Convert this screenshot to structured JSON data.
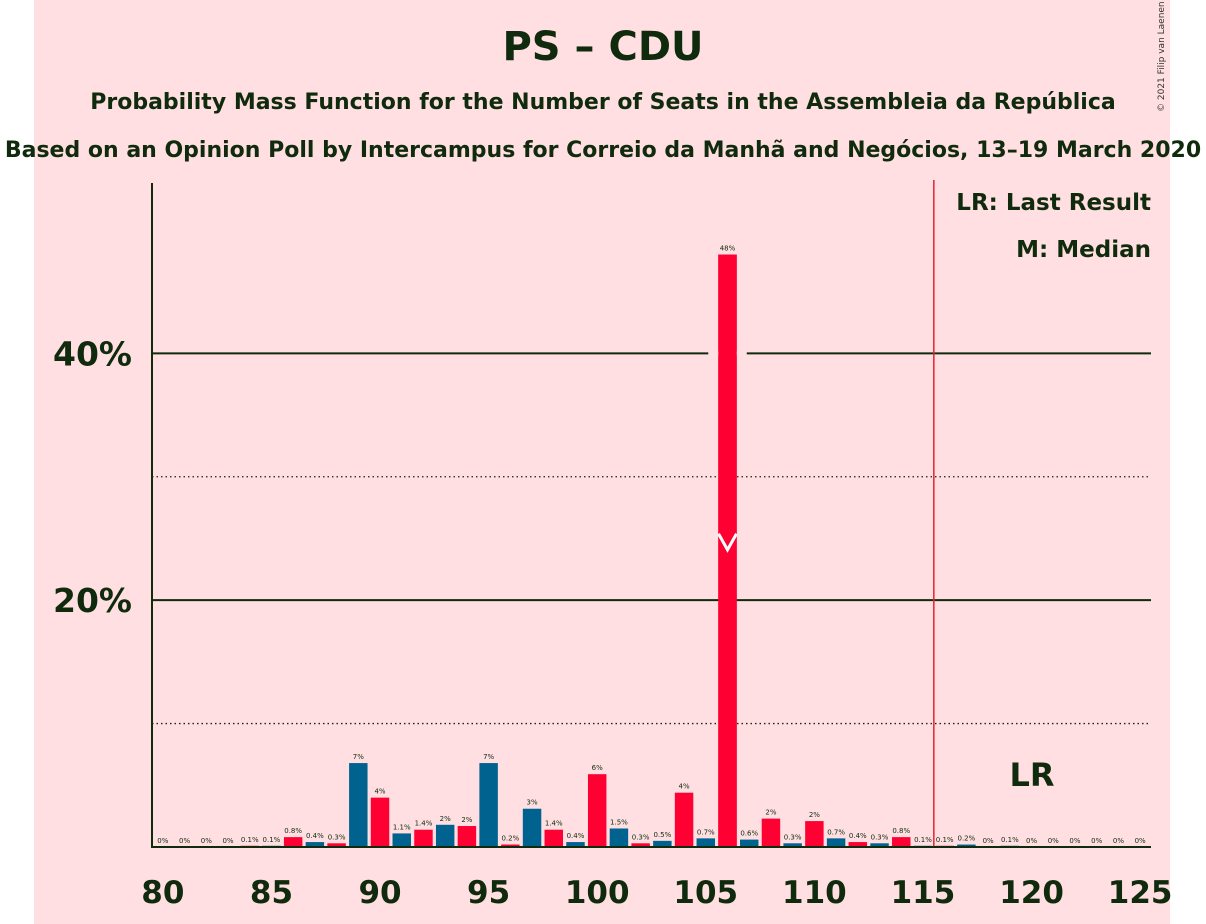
{
  "header": {
    "title": "PS – CDU",
    "subtitle": "Probability Mass Function for the Number of Seats in the Assembleia da República",
    "source": "Based on an Opinion Poll by Intercampus for Correio da Manhã and Negócios, 13–19 March 2020",
    "copyright": "© 2021 Filip van Laenen"
  },
  "legend": {
    "last_result": "LR: Last Result",
    "median": "M: Median",
    "lr_marker": "LR"
  },
  "colors": {
    "background": "#ffdfe1",
    "ps_red": "#ff0033",
    "cdu_blue": "#00628f",
    "last_result_line": "#e8202d",
    "text": "#0f2a0c"
  },
  "chart_data": {
    "type": "bar",
    "x": [
      80,
      81,
      82,
      83,
      84,
      85,
      86,
      87,
      88,
      89,
      90,
      91,
      92,
      93,
      94,
      95,
      96,
      97,
      98,
      99,
      100,
      101,
      102,
      103,
      104,
      105,
      106,
      107,
      108,
      109,
      110,
      111,
      112,
      113,
      114,
      115,
      116,
      117,
      118,
      119,
      120,
      121,
      122,
      123,
      124,
      125
    ],
    "values": [
      0,
      0,
      0,
      0,
      0.1,
      0.1,
      0.8,
      0.4,
      0.3,
      6.8,
      4.0,
      1.1,
      1.4,
      1.8,
      1.7,
      6.8,
      0.2,
      3.1,
      1.4,
      0.4,
      5.9,
      1.5,
      0.3,
      0.5,
      4.4,
      0.7,
      48.0,
      0.6,
      2.3,
      0.3,
      2.1,
      0.7,
      0.4,
      0.3,
      0.8,
      0.1,
      0.1,
      0.2,
      0,
      0.1,
      0,
      0,
      0,
      0,
      0,
      0
    ],
    "labels": [
      "0%",
      "0%",
      "0%",
      "0%",
      "0.1%",
      "0.1%",
      "0.8%",
      "0.4%",
      "0.3%",
      "7%",
      "4%",
      "1.1%",
      "1.4%",
      "2%",
      "2%",
      "7%",
      "0.2%",
      "3%",
      "1.4%",
      "0.4%",
      "6%",
      "1.5%",
      "0.3%",
      "0.5%",
      "4%",
      "0.7%",
      "48%",
      "0.6%",
      "2%",
      "0.3%",
      "2%",
      "0.7%",
      "0.4%",
      "0.3%",
      "0.8%",
      "0.1%",
      "0.1%",
      "0.2%",
      "0%",
      "0.1%",
      "0%",
      "0%",
      "0%",
      "0%",
      "0%",
      "0%"
    ],
    "bar_colors": [
      "red",
      "blue",
      "red",
      "blue",
      "red",
      "blue",
      "red",
      "blue",
      "red",
      "blue",
      "red",
      "blue",
      "red",
      "blue",
      "red",
      "blue",
      "red",
      "blue",
      "red",
      "blue",
      "red",
      "blue",
      "red",
      "blue",
      "red",
      "blue",
      "red",
      "blue",
      "red",
      "blue",
      "red",
      "blue",
      "red",
      "blue",
      "red",
      "blue",
      "red",
      "blue",
      "red",
      "blue",
      "red",
      "blue",
      "red",
      "blue",
      "red",
      "blue"
    ],
    "x_ticks": [
      80,
      85,
      90,
      95,
      100,
      105,
      110,
      115,
      120,
      125
    ],
    "x_tick_labels": [
      "80",
      "85",
      "90",
      "95",
      "100",
      "105",
      "110",
      "115",
      "120",
      "125"
    ],
    "y_ticks": [
      20,
      40
    ],
    "y_tick_labels": [
      "20%",
      "40%"
    ],
    "y_dotted_gridlines": [
      10,
      30
    ],
    "ylim": [
      0,
      53.8
    ],
    "xlim": [
      79.5,
      125.5
    ],
    "median": 106,
    "last_result": 115.5,
    "legend_position": "top-right"
  }
}
